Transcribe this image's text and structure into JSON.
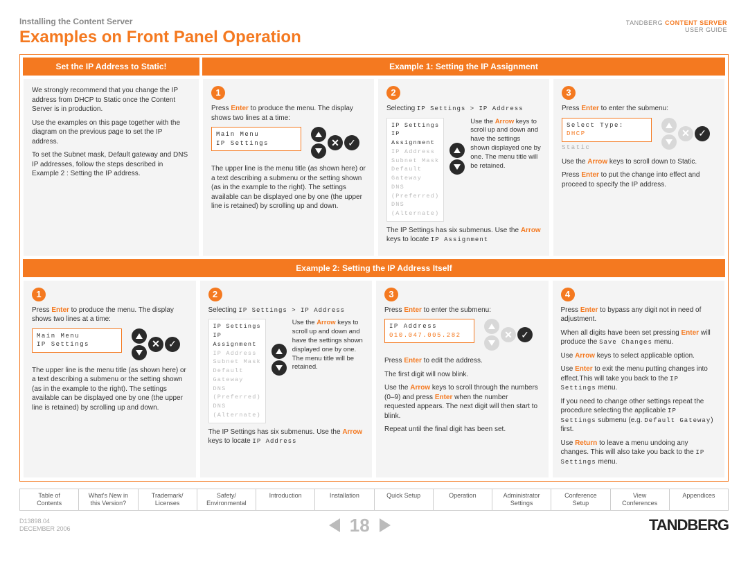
{
  "header": {
    "breadcrumb": "Installing the Content Server",
    "title": "Examples on Front Panel Operation",
    "brand_line1_a": "TANDBERG ",
    "brand_line1_b": "CONTENT SERVER",
    "brand_line2": "USER GUIDE"
  },
  "colors": {
    "accent": "#f47920",
    "panel_bg": "#f4f4f4",
    "btn_dark": "#2a2a2a",
    "btn_light": "#d8d8d8",
    "text_muted": "#aaa"
  },
  "section1": {
    "intro_header": "Set the IP Address to Static!",
    "example_header": "Example 1: Setting the IP Assignment",
    "intro_p1": "We strongly recommend that you change the IP address from DHCP to Static once the Content Server is in production.",
    "intro_p2": "Use the examples on this page together with the diagram on the previous page to set the IP address.",
    "intro_p3": "To set the Subnet mask, Default gateway and DNS IP addresses, follow the steps described in Example 2 : Setting the IP address.",
    "step1": {
      "num": "1",
      "p1a": "Press ",
      "p1b": "Enter",
      "p1c": " to produce the menu. The display shows two lines at a time:",
      "lcd_l1": "Main Menu",
      "lcd_l2": "IP Settings",
      "p2": "The upper line is the menu title (as shown here) or a text describing a submenu or the setting shown (as in the example to the right). The settings available can be displayed one by one (the upper line is retained) by scrolling up and down."
    },
    "step2": {
      "num": "2",
      "p1a": "Selecting ",
      "p1b": "IP Settings > IP Address",
      "menu": [
        "IP Settings",
        "IP Assignment",
        "IP Address",
        "Subnet Mask",
        "Default Gateway",
        "DNS (Preferred)",
        "DNS (Alternate)"
      ],
      "side_a": "Use the ",
      "side_arrow": "Arrow",
      "side_b": " keys to scroll up and down and have the settings shown displayed one by one. The menu title will be retained.",
      "p2a": "The IP Settings has six submenus. Use the ",
      "p2b": "Arrow",
      "p2c": " keys to locate ",
      "p2d": "IP Assignment"
    },
    "step3": {
      "num": "3",
      "p1a": "Press ",
      "p1b": "Enter",
      "p1c": " to enter the submenu:",
      "lcd_l1": "Select Type:",
      "lcd_l2": "DHCP",
      "lcd_sub": "Static",
      "p2a": "Use the ",
      "p2b": "Arrow",
      "p2c": " keys to scroll down to Static.",
      "p3a": "Press ",
      "p3b": "Enter",
      "p3c": " to put the change into effect and proceed to specify the IP address."
    }
  },
  "section2": {
    "header": "Example 2: Setting the IP Address Itself",
    "step1": {
      "num": "1",
      "p1a": "Press ",
      "p1b": "Enter",
      "p1c": " to produce the menu. The display shows two lines at a time:",
      "lcd_l1": "Main Menu",
      "lcd_l2": "IP Settings",
      "p2": "The upper line is the menu title (as shown here) or a text describing a submenu or the setting shown (as in the example to the right). The settings available can be displayed one by one (the upper line is retained) by scrolling up and down."
    },
    "step2": {
      "num": "2",
      "p1a": "Selecting ",
      "p1b": "IP Settings > IP Address",
      "menu": [
        "IP Settings",
        "IP Assignment",
        "IP Address",
        "Subnet Mask",
        "Default Gateway",
        "DNS (Preferred)",
        "DNS (Alternate)"
      ],
      "side_a": "Use the ",
      "side_arrow": "Arrow",
      "side_b": " keys to scroll up and down and have the settings shown displayed one by one. The menu title will be retained.",
      "p2a": "The IP Settings has six submenus. Use the ",
      "p2b": "Arrow",
      "p2c": " keys to locate ",
      "p2d": "IP Address"
    },
    "step3": {
      "num": "3",
      "p1a": "Press ",
      "p1b": "Enter",
      "p1c": " to enter the submenu:",
      "lcd_l1": "IP Address",
      "lcd_l2": "010.047.005.282",
      "p2a": "Press ",
      "p2b": "Enter",
      "p2c": " to edit the address.",
      "p3": "The first digit will now blink.",
      "p4a": "Use the ",
      "p4b": "Arrow",
      "p4c": " keys to scroll through the numbers (0–9) and press ",
      "p4d": "Enter",
      "p4e": " when the number requested appears. The next digit will then start to blink.",
      "p5": "Repeat until the final digit has been set."
    },
    "step4": {
      "num": "4",
      "p1a": "Press ",
      "p1b": "Enter",
      "p1c": " to bypass any digit not in need of adjustment.",
      "p2a": "When all digits have been set pressing ",
      "p2b": "Enter",
      "p2c": " will produce the ",
      "p2d": "Save Changes",
      "p2e": " menu.",
      "p3a": "Use ",
      "p3b": "Arrow",
      "p3c": " keys to select applicable option.",
      "p4a": "Use ",
      "p4b": "Enter",
      "p4c": " to exit the menu putting changes into effect.This will take you back to the ",
      "p4d": "IP Settings",
      "p4e": " menu.",
      "p5a": "If you need to change other settings repeat the procedure selecting the applicable ",
      "p5b": "IP Settings",
      "p5c": " submenu (e.g. ",
      "p5d": "Default Gateway",
      "p5e": ") first.",
      "p6a": "Use ",
      "p6b": "Return",
      "p6c": " to leave a menu undoing any changes. This will also take you back to the ",
      "p6d": "IP Settings",
      "p6e": " menu."
    }
  },
  "nav": {
    "tabs": [
      "Table of\nContents",
      "What's New in\nthis Version?",
      "Trademark/\nLicenses",
      "Safety/\nEnvironmental",
      "Introduction",
      "Installation",
      "Quick Setup",
      "Operation",
      "Administrator\nSettings",
      "Conference\nSetup",
      "View\nConferences",
      "Appendices"
    ]
  },
  "footer": {
    "doc_id": "D13898.04",
    "doc_date": "DECEMBER 2006",
    "page": "18",
    "brand": "TANDBERG"
  }
}
